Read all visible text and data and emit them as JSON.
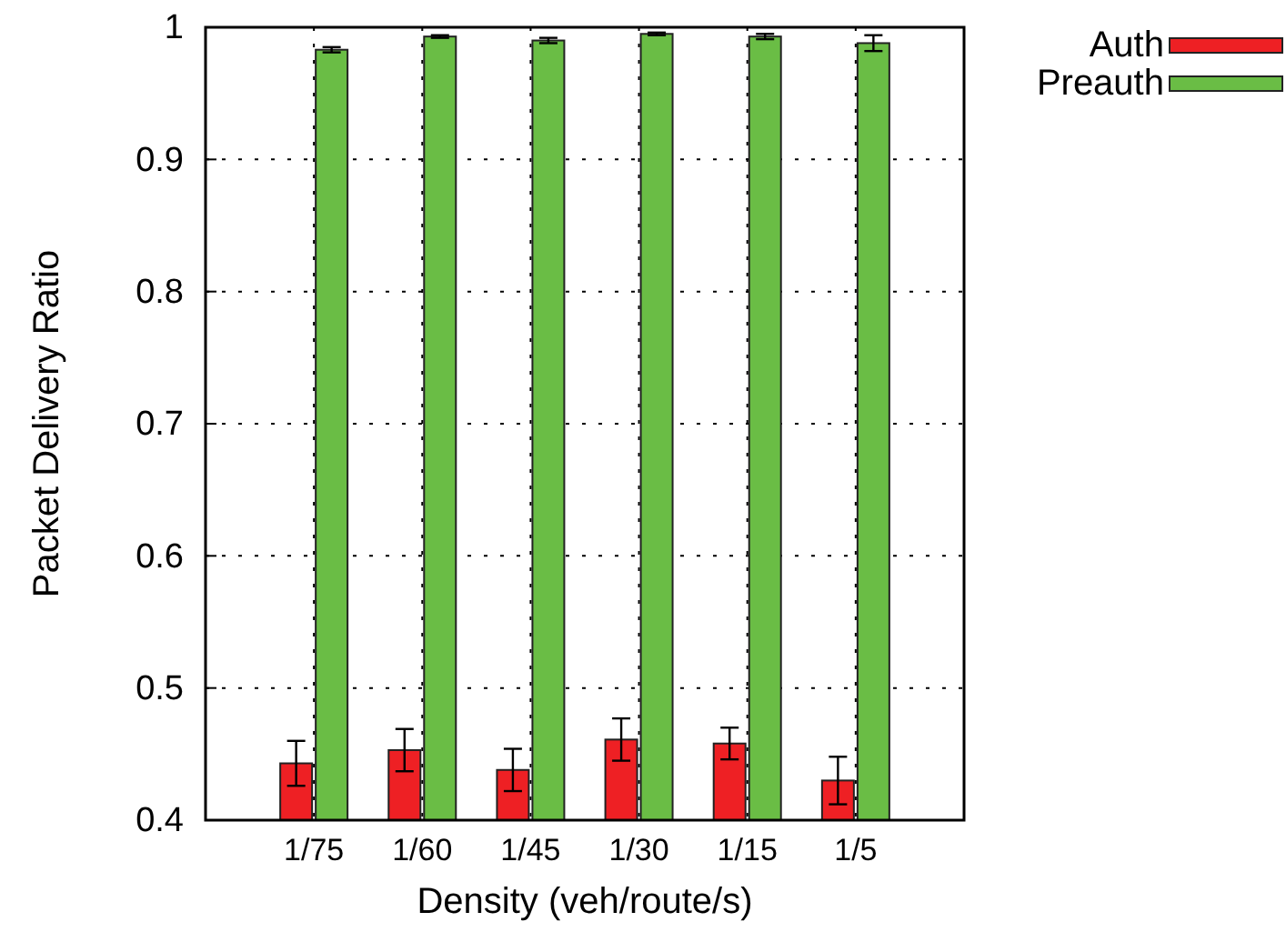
{
  "chart_data": {
    "type": "bar",
    "xlabel": "Density (veh/route/s)",
    "ylabel": "Packet Delivery Ratio",
    "categories": [
      "1/75",
      "1/60",
      "1/45",
      "1/30",
      "1/15",
      "1/5"
    ],
    "series": [
      {
        "name": "Auth",
        "color": "#ee2024",
        "values": [
          0.443,
          0.453,
          0.438,
          0.461,
          0.458,
          0.43
        ],
        "errors": [
          0.017,
          0.016,
          0.016,
          0.016,
          0.012,
          0.018
        ]
      },
      {
        "name": "Preauth",
        "color": "#6abd45",
        "values": [
          0.983,
          0.993,
          0.99,
          0.995,
          0.993,
          0.988
        ],
        "errors": [
          0.002,
          0.001,
          0.002,
          0.001,
          0.002,
          0.006
        ]
      }
    ],
    "ylim": [
      0.4,
      1
    ],
    "yticks": [
      {
        "value": 0.4,
        "label": "0.4"
      },
      {
        "value": 0.5,
        "label": "0.5"
      },
      {
        "value": 0.6,
        "label": "0.6"
      },
      {
        "value": 0.7,
        "label": "0.7"
      },
      {
        "value": 0.8,
        "label": "0.8"
      },
      {
        "value": 0.9,
        "label": "0.9"
      },
      1
    ],
    "grid": true,
    "legend": "top right"
  }
}
